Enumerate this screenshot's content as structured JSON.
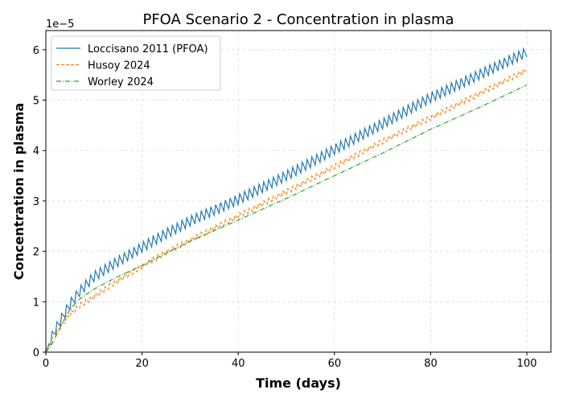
{
  "chart_data": {
    "type": "line",
    "title": "PFOA Scenario 2 - Concentration in plasma",
    "xlabel": "Time (days)",
    "ylabel": "Concentration in plasma",
    "y_offset_label": "1e−5",
    "xlim": [
      0,
      105
    ],
    "ylim": [
      0,
      6.38
    ],
    "x_ticks": [
      "0",
      "20",
      "40",
      "60",
      "80",
      "100"
    ],
    "y_ticks": [
      "0",
      "1",
      "2",
      "3",
      "4",
      "5",
      "6"
    ],
    "grid": true,
    "legend_position": "top-left",
    "x": [
      0,
      1,
      2,
      3,
      5,
      7,
      10,
      15,
      20,
      25,
      30,
      40,
      50,
      60,
      70,
      80,
      90,
      100
    ],
    "series": [
      {
        "name": "Loccisano 2011 (PFOA)",
        "color": "#1f77b4",
        "style": "solid",
        "values": [
          0,
          0.25,
          0.45,
          0.62,
          0.95,
          1.2,
          1.5,
          1.8,
          2.08,
          2.35,
          2.6,
          3.03,
          3.5,
          4.02,
          4.53,
          5.05,
          5.5,
          5.95
        ]
      },
      {
        "name": "Husoy 2024",
        "color": "#ff7f0e",
        "style": "dashed",
        "values": [
          0,
          0.2,
          0.35,
          0.5,
          0.75,
          0.92,
          1.1,
          1.42,
          1.7,
          1.98,
          2.22,
          2.7,
          3.18,
          3.68,
          4.18,
          4.65,
          5.12,
          5.6
        ]
      },
      {
        "name": "Worley 2024",
        "color": "#2ca02c",
        "style": "dashdot",
        "values": [
          0,
          0.12,
          0.3,
          0.5,
          0.85,
          1.05,
          1.25,
          1.5,
          1.72,
          1.96,
          2.2,
          2.62,
          3.05,
          3.5,
          3.95,
          4.42,
          4.85,
          5.3
        ]
      }
    ]
  }
}
